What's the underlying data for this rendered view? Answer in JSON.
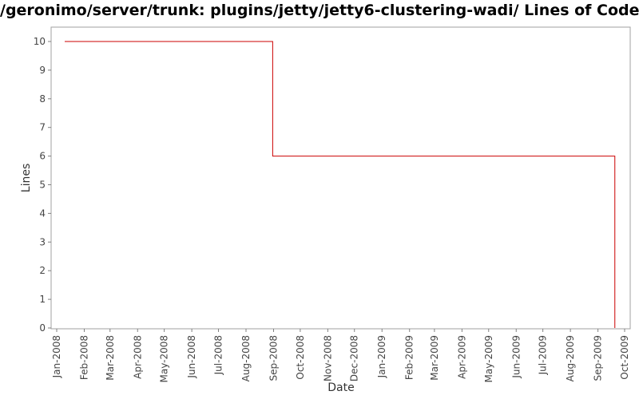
{
  "chart_data": {
    "type": "line",
    "title": "/geronimo/server/trunk: plugins/jetty/jetty6-clustering-wadi/ Lines of Code",
    "xlabel": "Date",
    "ylabel": "Lines",
    "ylim": [
      0,
      10
    ],
    "xlim": [
      "2008-01-01",
      "2009-10-01"
    ],
    "y_ticks": [
      "0",
      "1",
      "2",
      "3",
      "4",
      "5",
      "6",
      "7",
      "8",
      "9",
      "10"
    ],
    "x_ticks": [
      {
        "date": "2008-01-01",
        "label": "Jan-2008"
      },
      {
        "date": "2008-02-01",
        "label": "Feb-2008"
      },
      {
        "date": "2008-03-01",
        "label": "Mar-2008"
      },
      {
        "date": "2008-04-01",
        "label": "Apr-2008"
      },
      {
        "date": "2008-05-01",
        "label": "May-2008"
      },
      {
        "date": "2008-06-01",
        "label": "Jun-2008"
      },
      {
        "date": "2008-07-01",
        "label": "Jul-2008"
      },
      {
        "date": "2008-08-01",
        "label": "Aug-2008"
      },
      {
        "date": "2008-09-01",
        "label": "Sep-2008"
      },
      {
        "date": "2008-10-01",
        "label": "Oct-2008"
      },
      {
        "date": "2008-11-01",
        "label": "Nov-2008"
      },
      {
        "date": "2008-12-01",
        "label": "Dec-2008"
      },
      {
        "date": "2009-01-01",
        "label": "Jan-2009"
      },
      {
        "date": "2009-02-01",
        "label": "Feb-2009"
      },
      {
        "date": "2009-03-01",
        "label": "Mar-2009"
      },
      {
        "date": "2009-04-01",
        "label": "Apr-2009"
      },
      {
        "date": "2009-05-01",
        "label": "May-2009"
      },
      {
        "date": "2009-06-01",
        "label": "Jun-2009"
      },
      {
        "date": "2009-07-01",
        "label": "Jul-2009"
      },
      {
        "date": "2009-08-01",
        "label": "Aug-2009"
      },
      {
        "date": "2009-09-01",
        "label": "Sep-2009"
      },
      {
        "date": "2009-10-01",
        "label": "Oct-2009"
      }
    ],
    "series": [
      {
        "step": true,
        "color": "#cc0000",
        "points": [
          {
            "x": "2008-01-10",
            "y": 10
          },
          {
            "x": "2008-08-31",
            "y": 6
          },
          {
            "x": "2009-09-20",
            "y": 0
          }
        ]
      }
    ],
    "grid": false,
    "legend": "none",
    "colors": {
      "line": "#cc0000",
      "axis": "#808080",
      "frame": "#a0a0a0"
    }
  }
}
